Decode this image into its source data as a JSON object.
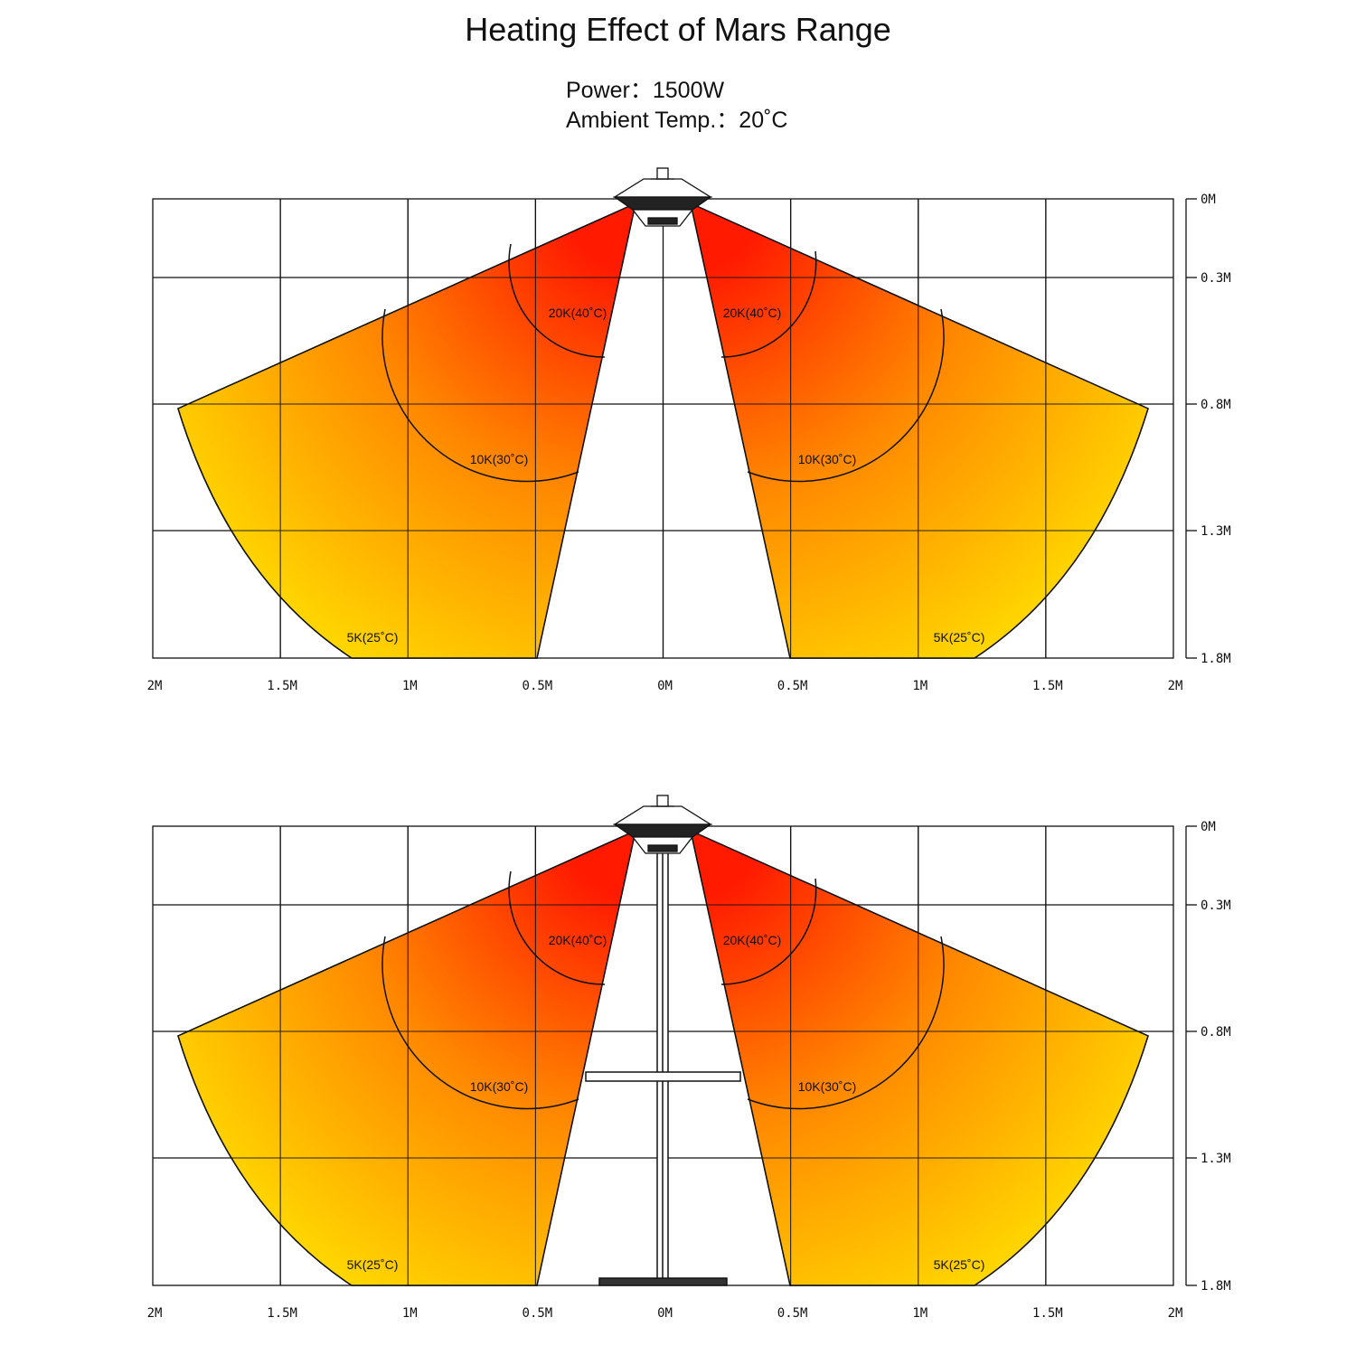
{
  "title": "Heating Effect of Mars Range",
  "specs": {
    "power": "Power：1500W",
    "ambient": "Ambient Temp.：20˚C"
  },
  "colors": {
    "hot": "#ff1a00",
    "mid": "#ff8800",
    "cool": "#fff200",
    "lines": "#111111"
  },
  "horizontal_axis": {
    "labels": [
      "2M",
      "1.5M",
      "1M",
      "0.5M",
      "0M",
      "0.5M",
      "1M",
      "1.5M",
      "2M"
    ]
  },
  "vertical_axis": {
    "labels": [
      "0M",
      "0.3M",
      "0.8M",
      "1.3M",
      "1.8M"
    ]
  },
  "zones": [
    {
      "temperature_increase": "20K",
      "temperature": "40˚C",
      "label": "20K(40˚C)"
    },
    {
      "temperature_increase": "10K",
      "temperature": "30˚C",
      "label": "10K(30˚C)"
    },
    {
      "temperature_increase": "5K",
      "temperature": "25˚C",
      "label": "5K(25˚C)"
    }
  ],
  "diagrams": [
    {
      "mounting": "hanging",
      "shows_stand": false
    },
    {
      "mounting": "free-standing",
      "shows_stand": true
    }
  ]
}
